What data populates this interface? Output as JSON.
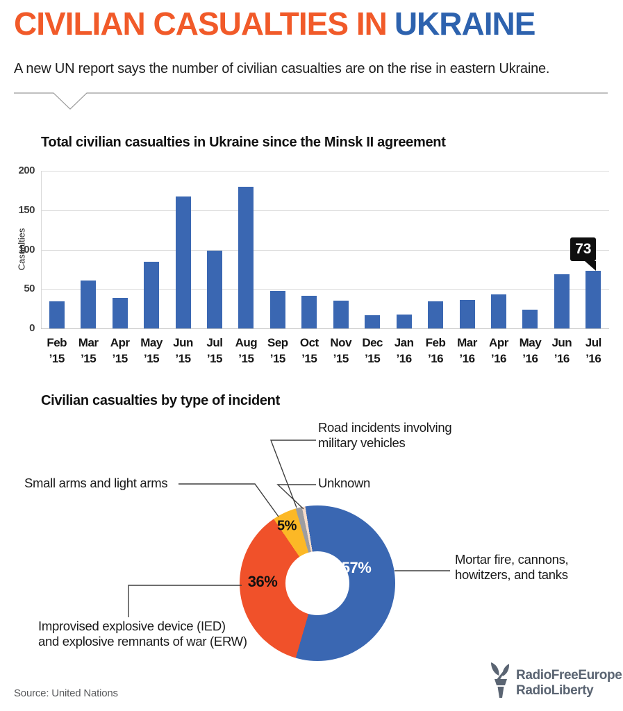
{
  "header": {
    "title_part1": "CIVILIAN CASUALTIES IN",
    "title_part2": "UKRAINE",
    "subtitle": "A new UN report says the number of civilian casualties are on the rise in eastern Ukraine.",
    "accent_orange": "#f15a29",
    "accent_blue": "#2d62ae"
  },
  "chart_data": [
    {
      "type": "bar",
      "title": "Total civilian casualties in Ukraine since the Minsk II agreement",
      "xlabel": "",
      "ylabel": "Casualties",
      "ylim": [
        0,
        200
      ],
      "yticks": [
        0,
        50,
        100,
        150,
        200
      ],
      "grid": true,
      "bar_color": "#3a67b2",
      "categories": [
        "Feb ’15",
        "Mar ’15",
        "Apr ’15",
        "May ’15",
        "Jun ’15",
        "Jul ’15",
        "Aug ’15",
        "Sep ’15",
        "Oct ’15",
        "Nov ’15",
        "Dec ’15",
        "Jan ’16",
        "Feb ’16",
        "Mar ’16",
        "Apr ’16",
        "May ’16",
        "Jun ’16",
        "Jul ’16"
      ],
      "values": [
        34,
        61,
        39,
        85,
        167,
        99,
        180,
        48,
        41,
        35,
        17,
        18,
        34,
        36,
        43,
        24,
        69,
        73
      ],
      "callout": {
        "index": 17,
        "label": "73"
      }
    },
    {
      "type": "pie",
      "donut": true,
      "title": "Civilian casualties by type of incident",
      "start_angle_deg": -9,
      "legend_position": "callout-labels",
      "slices": [
        {
          "label": "Mortar fire, cannons,\nhowitzers, and tanks",
          "value": 57,
          "pct_label": "57%",
          "color": "#3a67b2"
        },
        {
          "label": "Improvised explosive device (IED)\nand explosive remnants of war (ERW)",
          "value": 36,
          "pct_label": "36%",
          "color": "#f0512a"
        },
        {
          "label": "Small arms and light arms",
          "value": 5,
          "pct_label": "5%",
          "color": "#fcb826"
        },
        {
          "label": "Road incidents involving\nmilitary vehicles",
          "value": 1.3,
          "pct_label": "",
          "color": "#9d9da1"
        },
        {
          "label": "Unknown",
          "value": 0.7,
          "pct_label": "",
          "color": "#f7dcc9"
        }
      ]
    }
  ],
  "footer": {
    "source": "Source: United Nations",
    "logo_line1": "RadioFreeEurope",
    "logo_line2": "RadioLiberty",
    "logo_color": "#5a6472"
  }
}
